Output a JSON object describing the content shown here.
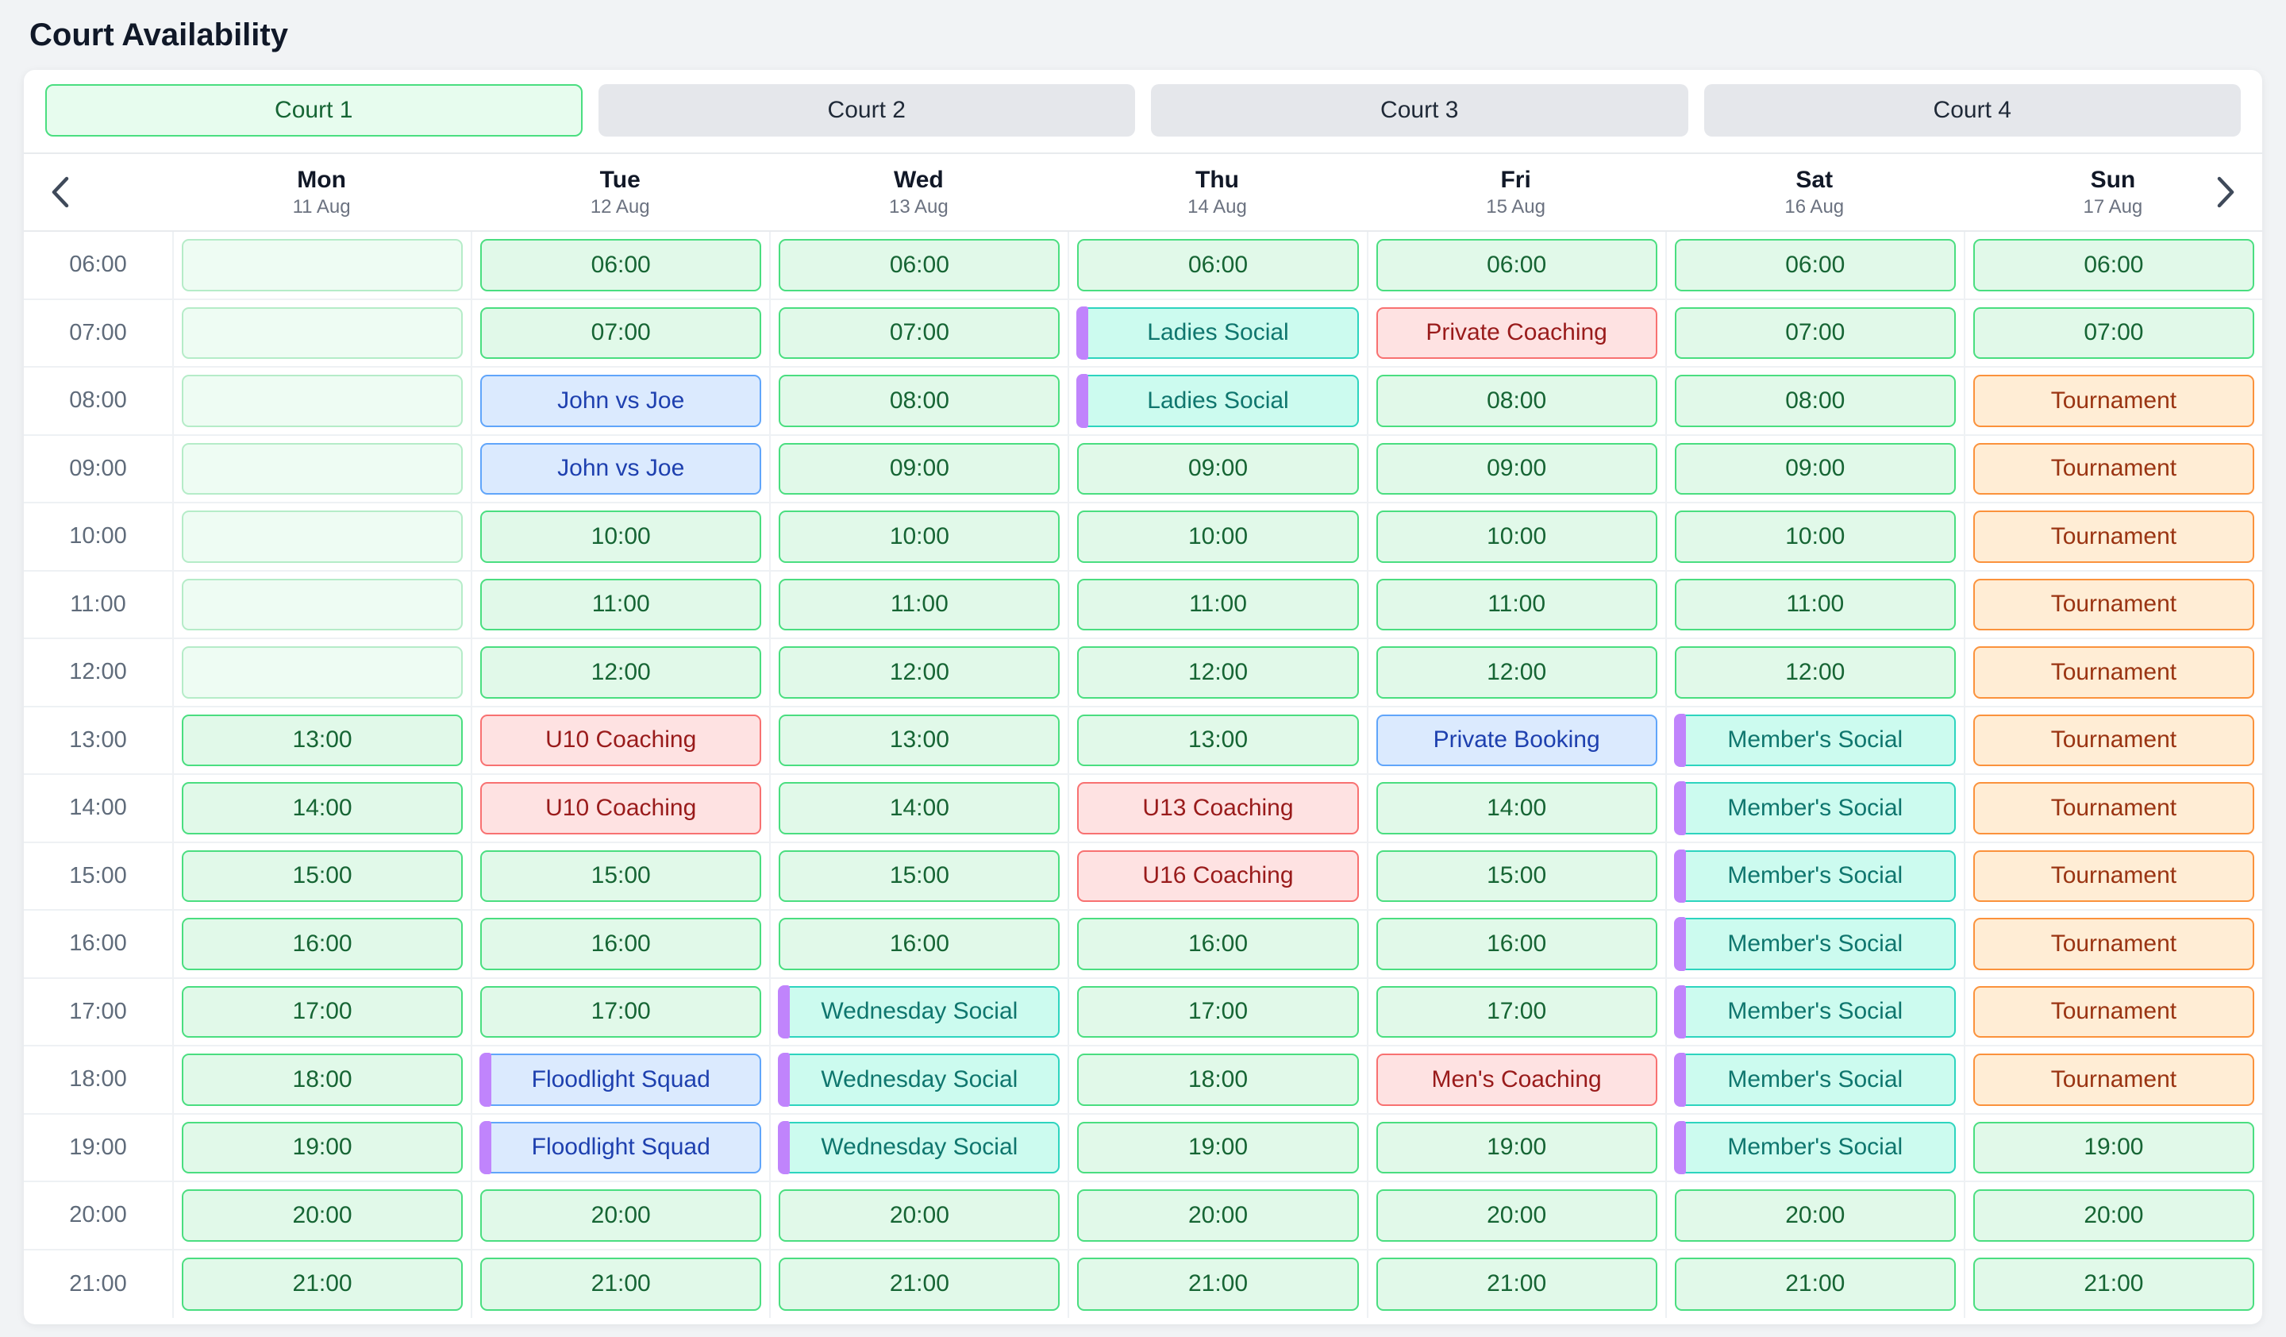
{
  "page": {
    "title": "Court Availability"
  },
  "tabs": [
    {
      "label": "Court 1",
      "active": true
    },
    {
      "label": "Court 2",
      "active": false
    },
    {
      "label": "Court 3",
      "active": false
    },
    {
      "label": "Court 4",
      "active": false
    }
  ],
  "week_nav": {
    "prev_icon": "chevron-left",
    "next_icon": "chevron-right"
  },
  "days": [
    {
      "label": "Mon",
      "date": "11 Aug"
    },
    {
      "label": "Tue",
      "date": "12 Aug"
    },
    {
      "label": "Wed",
      "date": "13 Aug"
    },
    {
      "label": "Thu",
      "date": "14 Aug"
    },
    {
      "label": "Fri",
      "date": "15 Aug"
    },
    {
      "label": "Sat",
      "date": "16 Aug"
    },
    {
      "label": "Sun",
      "date": "17 Aug"
    }
  ],
  "times": [
    "06:00",
    "07:00",
    "08:00",
    "09:00",
    "10:00",
    "11:00",
    "12:00",
    "13:00",
    "14:00",
    "15:00",
    "16:00",
    "17:00",
    "18:00",
    "19:00",
    "20:00",
    "21:00"
  ],
  "colors": {
    "available_green": "#4ade80",
    "booking_blue": "#60a5fa",
    "coaching_red": "#f87171",
    "social_teal": "#2dd4bf",
    "tournament_orange": "#fb923c",
    "event_bar_purple": "#c084fc"
  },
  "grid": {
    "columns": [
      {
        "day": "Mon",
        "cells": [
          {
            "type": "unavailable",
            "label": ""
          },
          {
            "type": "unavailable",
            "label": ""
          },
          {
            "type": "unavailable",
            "label": ""
          },
          {
            "type": "unavailable",
            "label": ""
          },
          {
            "type": "unavailable",
            "label": ""
          },
          {
            "type": "unavailable",
            "label": ""
          },
          {
            "type": "unavailable",
            "label": ""
          },
          {
            "type": "available",
            "label": "13:00"
          },
          {
            "type": "available",
            "label": "14:00"
          },
          {
            "type": "available",
            "label": "15:00"
          },
          {
            "type": "available",
            "label": "16:00"
          },
          {
            "type": "available",
            "label": "17:00"
          },
          {
            "type": "available",
            "label": "18:00"
          },
          {
            "type": "available",
            "label": "19:00"
          },
          {
            "type": "available",
            "label": "20:00"
          },
          {
            "type": "available",
            "label": "21:00"
          }
        ]
      },
      {
        "day": "Tue",
        "cells": [
          {
            "type": "available",
            "label": "06:00"
          },
          {
            "type": "available",
            "label": "07:00"
          },
          {
            "type": "match",
            "label": "John vs Joe"
          },
          {
            "type": "match",
            "label": "John vs Joe"
          },
          {
            "type": "available",
            "label": "10:00"
          },
          {
            "type": "available",
            "label": "11:00"
          },
          {
            "type": "available",
            "label": "12:00"
          },
          {
            "type": "coaching",
            "label": "U10 Coaching"
          },
          {
            "type": "coaching",
            "label": "U10 Coaching"
          },
          {
            "type": "available",
            "label": "15:00"
          },
          {
            "type": "available",
            "label": "16:00"
          },
          {
            "type": "available",
            "label": "17:00"
          },
          {
            "type": "squad",
            "label": "Floodlight Squad"
          },
          {
            "type": "squad",
            "label": "Floodlight Squad"
          },
          {
            "type": "available",
            "label": "20:00"
          },
          {
            "type": "available",
            "label": "21:00"
          }
        ]
      },
      {
        "day": "Wed",
        "cells": [
          {
            "type": "available",
            "label": "06:00"
          },
          {
            "type": "available",
            "label": "07:00"
          },
          {
            "type": "available",
            "label": "08:00"
          },
          {
            "type": "available",
            "label": "09:00"
          },
          {
            "type": "available",
            "label": "10:00"
          },
          {
            "type": "available",
            "label": "11:00"
          },
          {
            "type": "available",
            "label": "12:00"
          },
          {
            "type": "available",
            "label": "13:00"
          },
          {
            "type": "available",
            "label": "14:00"
          },
          {
            "type": "available",
            "label": "15:00"
          },
          {
            "type": "available",
            "label": "16:00"
          },
          {
            "type": "social",
            "label": "Wednesday Social"
          },
          {
            "type": "social",
            "label": "Wednesday Social"
          },
          {
            "type": "social",
            "label": "Wednesday Social"
          },
          {
            "type": "available",
            "label": "20:00"
          },
          {
            "type": "available",
            "label": "21:00"
          }
        ]
      },
      {
        "day": "Thu",
        "cells": [
          {
            "type": "available",
            "label": "06:00"
          },
          {
            "type": "social",
            "label": "Ladies Social"
          },
          {
            "type": "social",
            "label": "Ladies Social"
          },
          {
            "type": "available",
            "label": "09:00"
          },
          {
            "type": "available",
            "label": "10:00"
          },
          {
            "type": "available",
            "label": "11:00"
          },
          {
            "type": "available",
            "label": "12:00"
          },
          {
            "type": "available",
            "label": "13:00"
          },
          {
            "type": "coaching",
            "label": "U13 Coaching"
          },
          {
            "type": "coaching",
            "label": "U16 Coaching"
          },
          {
            "type": "available",
            "label": "16:00"
          },
          {
            "type": "available",
            "label": "17:00"
          },
          {
            "type": "available",
            "label": "18:00"
          },
          {
            "type": "available",
            "label": "19:00"
          },
          {
            "type": "available",
            "label": "20:00"
          },
          {
            "type": "available",
            "label": "21:00"
          }
        ]
      },
      {
        "day": "Fri",
        "cells": [
          {
            "type": "available",
            "label": "06:00"
          },
          {
            "type": "coaching",
            "label": "Private Coaching"
          },
          {
            "type": "available",
            "label": "08:00"
          },
          {
            "type": "available",
            "label": "09:00"
          },
          {
            "type": "available",
            "label": "10:00"
          },
          {
            "type": "available",
            "label": "11:00"
          },
          {
            "type": "available",
            "label": "12:00"
          },
          {
            "type": "match",
            "label": "Private Booking"
          },
          {
            "type": "available",
            "label": "14:00"
          },
          {
            "type": "available",
            "label": "15:00"
          },
          {
            "type": "available",
            "label": "16:00"
          },
          {
            "type": "available",
            "label": "17:00"
          },
          {
            "type": "coaching",
            "label": "Men's Coaching"
          },
          {
            "type": "available",
            "label": "19:00"
          },
          {
            "type": "available",
            "label": "20:00"
          },
          {
            "type": "available",
            "label": "21:00"
          }
        ]
      },
      {
        "day": "Sat",
        "cells": [
          {
            "type": "available",
            "label": "06:00"
          },
          {
            "type": "available",
            "label": "07:00"
          },
          {
            "type": "available",
            "label": "08:00"
          },
          {
            "type": "available",
            "label": "09:00"
          },
          {
            "type": "available",
            "label": "10:00"
          },
          {
            "type": "available",
            "label": "11:00"
          },
          {
            "type": "available",
            "label": "12:00"
          },
          {
            "type": "social",
            "label": "Member's Social"
          },
          {
            "type": "social",
            "label": "Member's Social"
          },
          {
            "type": "social",
            "label": "Member's Social"
          },
          {
            "type": "social",
            "label": "Member's Social"
          },
          {
            "type": "social",
            "label": "Member's Social"
          },
          {
            "type": "social",
            "label": "Member's Social"
          },
          {
            "type": "social",
            "label": "Member's Social"
          },
          {
            "type": "available",
            "label": "20:00"
          },
          {
            "type": "available",
            "label": "21:00"
          }
        ]
      },
      {
        "day": "Sun",
        "cells": [
          {
            "type": "available",
            "label": "06:00"
          },
          {
            "type": "available",
            "label": "07:00"
          },
          {
            "type": "tournament",
            "label": "Tournament"
          },
          {
            "type": "tournament",
            "label": "Tournament"
          },
          {
            "type": "tournament",
            "label": "Tournament"
          },
          {
            "type": "tournament",
            "label": "Tournament"
          },
          {
            "type": "tournament",
            "label": "Tournament"
          },
          {
            "type": "tournament",
            "label": "Tournament"
          },
          {
            "type": "tournament",
            "label": "Tournament"
          },
          {
            "type": "tournament",
            "label": "Tournament"
          },
          {
            "type": "tournament",
            "label": "Tournament"
          },
          {
            "type": "tournament",
            "label": "Tournament"
          },
          {
            "type": "tournament",
            "label": "Tournament"
          },
          {
            "type": "available",
            "label": "19:00"
          },
          {
            "type": "available",
            "label": "20:00"
          },
          {
            "type": "available",
            "label": "21:00"
          }
        ]
      }
    ]
  }
}
